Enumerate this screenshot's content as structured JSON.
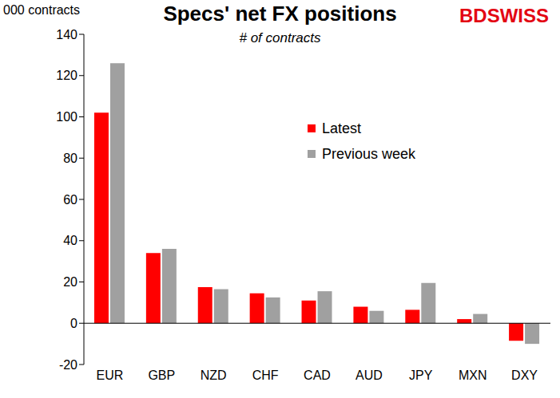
{
  "chart_data": {
    "type": "bar",
    "title": "Specs' net FX positions",
    "subtitle": "# of contracts",
    "ylabel": "000 contracts",
    "annotations": [
      "BDSWISS"
    ],
    "categories": [
      "EUR",
      "GBP",
      "NZD",
      "CHF",
      "CAD",
      "AUD",
      "JPY",
      "MXN",
      "DXY"
    ],
    "series": [
      {
        "name": "Latest",
        "color": "#ff0000",
        "values": [
          102,
          34,
          17.5,
          14.5,
          11,
          8,
          6.5,
          2,
          -8.5
        ]
      },
      {
        "name": "Previous week",
        "color": "#a0a0a0",
        "values": [
          126,
          36,
          16.5,
          12.5,
          15.5,
          6,
          19.5,
          4.5,
          -10
        ]
      }
    ],
    "ylim": [
      -20,
      140
    ],
    "yticks": [
      -20,
      0,
      20,
      40,
      60,
      80,
      100,
      120,
      140
    ],
    "grid": false,
    "legend": "upper right"
  }
}
